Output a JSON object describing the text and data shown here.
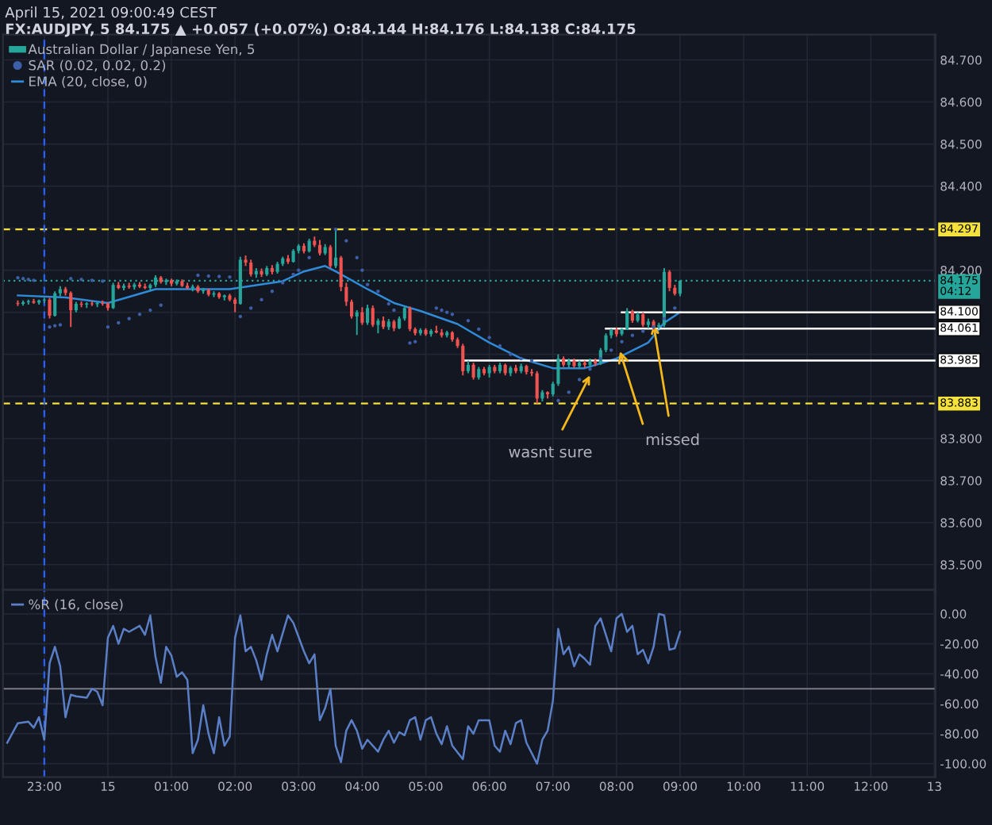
{
  "chart_data": [
    {
      "type": "candlestick",
      "title": "April 15, 2021 09:00:49 CEST",
      "subtitle": "FX:AUDJPY, 5 84.175 ▲ +0.057 (+0.07%) O:84.144 H:84.176 L:84.138 C:84.175",
      "xlim": [
        "2021-04-14T22:21",
        "2021-04-15T13:01"
      ],
      "xticks": [
        {
          "value": "2021-04-14T23:00",
          "label": null
        },
        {
          "value": "2021-04-15T00:00",
          "label": null
        },
        {
          "value": "2021-04-15T01:00",
          "label": null
        },
        {
          "value": "2021-04-15T02:00",
          "label": null
        },
        {
          "value": "2021-04-15T03:00",
          "label": null
        },
        {
          "value": "2021-04-15T04:00",
          "label": null
        },
        {
          "value": "2021-04-15T05:00",
          "label": null
        },
        {
          "value": "2021-04-15T06:00",
          "label": null
        },
        {
          "value": "2021-04-15T07:00",
          "label": null
        },
        {
          "value": "2021-04-15T08:00",
          "label": null
        },
        {
          "value": "2021-04-15T09:00",
          "label": null
        },
        {
          "value": "2021-04-15T10:00",
          "label": null
        },
        {
          "value": "2021-04-15T11:00",
          "label": null
        },
        {
          "value": "2021-04-15T12:00",
          "label": null
        },
        {
          "value": "2021-04-15T13:00",
          "label": null
        }
      ],
      "ylim": [
        83.44,
        84.76
      ],
      "yticks": [
        {
          "value": 83.5,
          "label": "83.500"
        },
        {
          "value": 83.6,
          "label": "83.600"
        },
        {
          "value": 83.7,
          "label": "83.700"
        },
        {
          "value": 83.8,
          "label": "83.800"
        },
        {
          "value": 83.9,
          "label": null
        },
        {
          "value": 84.0,
          "label": null
        },
        {
          "value": 84.1,
          "label": null
        },
        {
          "value": 84.2,
          "label": "84.200"
        },
        {
          "value": 84.3,
          "label": null
        },
        {
          "value": 84.4,
          "label": "84.400"
        },
        {
          "value": 84.5,
          "label": "84.500"
        },
        {
          "value": 84.6,
          "label": "84.600"
        },
        {
          "value": 84.7,
          "label": "84.700"
        }
      ],
      "tick_labels": "y",
      "grid": true,
      "legend": "top left",
      "series": [
        {
          "name": "Australian Dollar / Japanese Yen, 5",
          "type": "candlestick",
          "colors": [
            "#ef5350",
            "#26a69a",
            "#26a69a",
            "#ef5350",
            "#26a69a",
            "#26a69a",
            "#ef5350",
            "#26a69a",
            "#26a69a",
            "#ef5350",
            "#ef5350",
            "#26a69a",
            "#ef5350",
            "#26a69a",
            "#ef5350",
            "#26a69a",
            "#ef5350",
            "#ef5350",
            "#26a69a",
            "#ef5350",
            "#26a69a",
            "#ef5350",
            "#26a69a",
            "#ef5350",
            "#ef5350",
            "#26a69a",
            "#26a69a",
            "#ef5350",
            "#26a69a",
            "#ef5350",
            "#26a69a",
            "#ef5350",
            "#ef5350",
            "#26a69a",
            "#ef5350",
            "#26a69a",
            "#ef5350",
            "#26a69a",
            "#ef5350",
            "#26a69a",
            "#ef5350",
            "#ef5350",
            "#26a69a",
            "#ef5350",
            "#ef5350",
            "#26a69a",
            "#ef5350",
            "#26a69a",
            "#ef5350",
            "#26a69a",
            "#26a69a",
            "#ef5350",
            "#26a69a",
            "#26a69a",
            "#ef5350",
            "#26a69a",
            "#ef5350",
            "#ef5350",
            "#26a69a",
            "#ef5350",
            "#26a69a",
            "#ef5350",
            "#ef5350",
            "#ef5350",
            "#26a69a",
            "#ef5350",
            "#26a69a",
            "#ef5350",
            "#26a69a",
            "#ef5350",
            "#26a69a",
            "#ef5350",
            "#26a69a",
            "#26a69a",
            "#ef5350",
            "#ef5350",
            "#26a69a",
            "#ef5350",
            "#26a69a",
            "#ef5350",
            "#ef5350",
            "#26a69a",
            "#ef5350",
            "#ef5350",
            "#ef5350",
            "#26a69a",
            "#ef5350",
            "#26a69a",
            "#ef5350",
            "#26a69a",
            "#ef5350",
            "#26a69a",
            "#ef5350",
            "#26a69a",
            "#ef5350",
            "#26a69a",
            "#ef5350",
            "#ef5350",
            "#ef5350",
            "#26a69a",
            "#ef5350",
            "#26a69a",
            "#26a69a",
            "#ef5350",
            "#26a69a",
            "#ef5350",
            "#26a69a",
            "#ef5350",
            "#26a69a",
            "#ef5350",
            "#26a69a",
            "#26a69a",
            "#26a69a",
            "#ef5350",
            "#26a69a",
            "#26a69a",
            "#ef5350",
            "#26a69a",
            "#ef5350",
            "#26a69a",
            "#ef5350",
            "#26a69a",
            "#26a69a",
            "#ef5350",
            "#ef5350",
            "#26a69a"
          ],
          "x": [
            "2021-04-14T22:35",
            "2021-04-14T22:40",
            "2021-04-14T22:45",
            "2021-04-14T22:50",
            "2021-04-14T22:55",
            "2021-04-14T23:00",
            "2021-04-14T23:05",
            "2021-04-14T23:10",
            "2021-04-14T23:15",
            "2021-04-14T23:20",
            "2021-04-14T23:25",
            "2021-04-14T23:30",
            "2021-04-14T23:35",
            "2021-04-14T23:40",
            "2021-04-14T23:45",
            "2021-04-14T23:50",
            "2021-04-14T23:55",
            "2021-04-15T00:00",
            "2021-04-15T00:05",
            "2021-04-15T00:10",
            "2021-04-15T00:15",
            "2021-04-15T00:20",
            "2021-04-15T00:25",
            "2021-04-15T00:30",
            "2021-04-15T00:35",
            "2021-04-15T00:40",
            "2021-04-15T00:45",
            "2021-04-15T00:50",
            "2021-04-15T00:55",
            "2021-04-15T01:00",
            "2021-04-15T01:05",
            "2021-04-15T01:10",
            "2021-04-15T01:15",
            "2021-04-15T01:20",
            "2021-04-15T01:25",
            "2021-04-15T01:30",
            "2021-04-15T01:35",
            "2021-04-15T01:40",
            "2021-04-15T01:45",
            "2021-04-15T01:50",
            "2021-04-15T01:55",
            "2021-04-15T02:00",
            "2021-04-15T02:05",
            "2021-04-15T02:10",
            "2021-04-15T02:15",
            "2021-04-15T02:20",
            "2021-04-15T02:25",
            "2021-04-15T02:30",
            "2021-04-15T02:35",
            "2021-04-15T02:40",
            "2021-04-15T02:45",
            "2021-04-15T02:50",
            "2021-04-15T02:55",
            "2021-04-15T03:00",
            "2021-04-15T03:05",
            "2021-04-15T03:10",
            "2021-04-15T03:15",
            "2021-04-15T03:20",
            "2021-04-15T03:25",
            "2021-04-15T03:30",
            "2021-04-15T03:35",
            "2021-04-15T03:40",
            "2021-04-15T03:45",
            "2021-04-15T03:50",
            "2021-04-15T03:55",
            "2021-04-15T04:00",
            "2021-04-15T04:05",
            "2021-04-15T04:10",
            "2021-04-15T04:15",
            "2021-04-15T04:20",
            "2021-04-15T04:25",
            "2021-04-15T04:30",
            "2021-04-15T04:35",
            "2021-04-15T04:40",
            "2021-04-15T04:45",
            "2021-04-15T04:50",
            "2021-04-15T04:55",
            "2021-04-15T05:00",
            "2021-04-15T05:05",
            "2021-04-15T05:10",
            "2021-04-15T05:15",
            "2021-04-15T05:20",
            "2021-04-15T05:25",
            "2021-04-15T05:30",
            "2021-04-15T05:35",
            "2021-04-15T05:40",
            "2021-04-15T05:45",
            "2021-04-15T05:50",
            "2021-04-15T05:55",
            "2021-04-15T06:00",
            "2021-04-15T06:05",
            "2021-04-15T06:10",
            "2021-04-15T06:15",
            "2021-04-15T06:20",
            "2021-04-15T06:25",
            "2021-04-15T06:30",
            "2021-04-15T06:35",
            "2021-04-15T06:40",
            "2021-04-15T06:45",
            "2021-04-15T06:50",
            "2021-04-15T06:55",
            "2021-04-15T07:00",
            "2021-04-15T07:05",
            "2021-04-15T07:10",
            "2021-04-15T07:15",
            "2021-04-15T07:20",
            "2021-04-15T07:25",
            "2021-04-15T07:30",
            "2021-04-15T07:35",
            "2021-04-15T07:40",
            "2021-04-15T07:45",
            "2021-04-15T07:50",
            "2021-04-15T07:55",
            "2021-04-15T08:00",
            "2021-04-15T08:05",
            "2021-04-15T08:10",
            "2021-04-15T08:15",
            "2021-04-15T08:20",
            "2021-04-15T08:25",
            "2021-04-15T08:30",
            "2021-04-15T08:35",
            "2021-04-15T08:40",
            "2021-04-15T08:45",
            "2021-04-15T08:50",
            "2021-04-15T08:55",
            "2021-04-15T09:00"
          ],
          "ohlc": [
            [
              84.122,
              84.128,
              84.115,
              84.12
            ],
            [
              84.12,
              84.128,
              84.116,
              84.124
            ],
            [
              84.124,
              84.13,
              84.118,
              84.126
            ],
            [
              84.126,
              84.132,
              84.12,
              84.123
            ],
            [
              84.123,
              84.13,
              84.118,
              84.128
            ],
            [
              84.128,
              84.134,
              84.122,
              84.13
            ],
            [
              84.13,
              84.134,
              84.085,
              84.092
            ],
            [
              84.092,
              84.15,
              84.09,
              84.145
            ],
            [
              84.145,
              84.162,
              84.138,
              84.155
            ],
            [
              84.155,
              84.16,
              84.14,
              84.146
            ],
            [
              84.146,
              84.15,
              84.065,
              84.105
            ],
            [
              84.105,
              84.125,
              84.1,
              84.12
            ],
            [
              84.12,
              84.126,
              84.112,
              84.118
            ],
            [
              84.118,
              84.124,
              84.11,
              84.121
            ],
            [
              84.121,
              84.127,
              84.115,
              84.119
            ],
            [
              84.119,
              84.125,
              84.112,
              84.122
            ],
            [
              84.122,
              84.128,
              84.116,
              84.12
            ],
            [
              84.12,
              84.124,
              84.104,
              84.11
            ],
            [
              84.11,
              84.17,
              84.108,
              84.165
            ],
            [
              84.165,
              84.172,
              84.155,
              84.158
            ],
            [
              84.158,
              84.168,
              84.152,
              84.163
            ],
            [
              84.163,
              84.17,
              84.156,
              84.16
            ],
            [
              84.16,
              84.17,
              84.154,
              84.166
            ],
            [
              84.166,
              84.172,
              84.158,
              84.161
            ],
            [
              84.161,
              84.168,
              84.155,
              84.158
            ],
            [
              84.158,
              84.168,
              84.152,
              84.165
            ],
            [
              84.165,
              84.188,
              84.16,
              84.183
            ],
            [
              84.183,
              84.186,
              84.168,
              84.172
            ],
            [
              84.172,
              84.18,
              84.165,
              84.176
            ],
            [
              84.176,
              84.18,
              84.162,
              84.168
            ],
            [
              84.168,
              84.178,
              84.164,
              84.174
            ],
            [
              84.174,
              84.178,
              84.16,
              84.163
            ],
            [
              84.163,
              84.17,
              84.155,
              84.158
            ],
            [
              84.158,
              84.166,
              84.15,
              84.161
            ],
            [
              84.161,
              84.165,
              84.146,
              84.15
            ],
            [
              84.15,
              84.158,
              84.144,
              84.153
            ],
            [
              84.153,
              84.156,
              84.138,
              84.142
            ],
            [
              84.142,
              84.15,
              84.136,
              84.145
            ],
            [
              84.145,
              84.148,
              84.132,
              84.136
            ],
            [
              84.136,
              84.142,
              84.128,
              84.14
            ],
            [
              84.14,
              84.144,
              84.126,
              84.13
            ],
            [
              84.13,
              84.135,
              84.1,
              84.12
            ],
            [
              84.12,
              84.232,
              84.118,
              84.225
            ],
            [
              84.225,
              84.235,
              84.21,
              84.218
            ],
            [
              84.218,
              84.225,
              84.185,
              84.19
            ],
            [
              84.19,
              84.205,
              84.182,
              84.198
            ],
            [
              84.198,
              84.204,
              84.184,
              84.19
            ],
            [
              84.19,
              84.21,
              84.186,
              84.205
            ],
            [
              84.205,
              84.212,
              84.19,
              84.196
            ],
            [
              84.196,
              84.22,
              84.192,
              84.215
            ],
            [
              84.215,
              84.232,
              84.21,
              84.228
            ],
            [
              84.228,
              84.236,
              84.215,
              84.22
            ],
            [
              84.22,
              84.25,
              84.218,
              84.246
            ],
            [
              84.246,
              84.262,
              84.24,
              84.258
            ],
            [
              84.258,
              84.264,
              84.24,
              84.245
            ],
            [
              84.245,
              84.275,
              84.242,
              84.27
            ],
            [
              84.27,
              84.28,
              84.255,
              84.26
            ],
            [
              84.26,
              84.272,
              84.235,
              84.24
            ],
            [
              84.24,
              84.262,
              84.236,
              84.255
            ],
            [
              84.255,
              84.26,
              84.205,
              84.21
            ],
            [
              84.21,
              84.297,
              84.205,
              84.23
            ],
            [
              84.23,
              84.234,
              84.15,
              84.16
            ],
            [
              84.16,
              84.17,
              84.115,
              84.125
            ],
            [
              84.125,
              84.13,
              84.085,
              84.09
            ],
            [
              84.09,
              84.105,
              84.046,
              84.1
            ],
            [
              84.1,
              84.112,
              84.07,
              84.075
            ],
            [
              84.075,
              84.118,
              84.07,
              84.11
            ],
            [
              84.11,
              84.116,
              84.065,
              84.07
            ],
            [
              84.07,
              84.085,
              84.05,
              84.08
            ],
            [
              84.08,
              84.09,
              84.06,
              84.065
            ],
            [
              84.065,
              84.084,
              84.058,
              84.078
            ],
            [
              84.078,
              84.082,
              84.055,
              84.062
            ],
            [
              84.062,
              84.09,
              84.06,
              84.085
            ],
            [
              84.085,
              84.115,
              84.08,
              84.11
            ],
            [
              84.11,
              84.114,
              84.055,
              84.06
            ],
            [
              84.06,
              84.064,
              84.045,
              84.05
            ],
            [
              84.05,
              84.062,
              84.045,
              84.058
            ],
            [
              84.058,
              84.062,
              84.044,
              84.048
            ],
            [
              84.048,
              84.06,
              84.042,
              84.056
            ],
            [
              84.056,
              84.068,
              84.05,
              84.052
            ],
            [
              84.052,
              84.06,
              84.04,
              84.045
            ],
            [
              84.045,
              84.056,
              84.04,
              84.052
            ],
            [
              84.052,
              84.055,
              84.03,
              84.035
            ],
            [
              84.035,
              84.04,
              84.015,
              84.02
            ],
            [
              84.02,
              84.025,
              83.95,
              83.96
            ],
            [
              83.96,
              83.985,
              83.955,
              83.975
            ],
            [
              83.975,
              83.98,
              83.94,
              83.945
            ],
            [
              83.945,
              83.97,
              83.94,
              83.965
            ],
            [
              83.965,
              83.97,
              83.95,
              83.955
            ],
            [
              83.955,
              83.975,
              83.945,
              83.97
            ],
            [
              83.97,
              83.975,
              83.955,
              83.96
            ],
            [
              83.96,
              83.98,
              83.955,
              83.975
            ],
            [
              83.975,
              83.978,
              83.95,
              83.955
            ],
            [
              83.955,
              83.972,
              83.948,
              83.968
            ],
            [
              83.968,
              83.975,
              83.955,
              83.96
            ],
            [
              83.96,
              83.978,
              83.955,
              83.972
            ],
            [
              83.972,
              83.975,
              83.952,
              83.958
            ],
            [
              83.958,
              83.965,
              83.948,
              83.955
            ],
            [
              83.955,
              83.96,
              83.883,
              83.895
            ],
            [
              83.895,
              83.915,
              83.888,
              83.91
            ],
            [
              83.91,
              83.912,
              83.895,
              83.905
            ],
            [
              83.905,
              83.935,
              83.9,
              83.93
            ],
            [
              83.93,
              84.0,
              83.925,
              83.99
            ],
            [
              83.99,
              83.995,
              83.97,
              83.975
            ],
            [
              83.975,
              83.99,
              83.968,
              83.985
            ],
            [
              83.985,
              83.99,
              83.968,
              83.972
            ],
            [
              83.972,
              83.985,
              83.965,
              83.98
            ],
            [
              83.98,
              83.985,
              83.968,
              83.975
            ],
            [
              83.975,
              83.99,
              83.97,
              83.984
            ],
            [
              83.984,
              83.99,
              83.972,
              83.978
            ],
            [
              83.978,
              84.015,
              83.975,
              84.01
            ],
            [
              84.01,
              84.05,
              84.005,
              84.045
            ],
            [
              84.045,
              84.061,
              84.038,
              84.058
            ],
            [
              84.058,
              84.064,
              84.042,
              84.048
            ],
            [
              84.048,
              84.062,
              84.044,
              84.06
            ],
            [
              84.06,
              84.11,
              84.058,
              84.102
            ],
            [
              84.102,
              84.106,
              84.075,
              84.08
            ],
            [
              84.08,
              84.1,
              84.076,
              84.095
            ],
            [
              84.095,
              84.1,
              84.065,
              84.07
            ],
            [
              84.07,
              84.085,
              84.062,
              84.078
            ],
            [
              84.078,
              84.082,
              84.058,
              84.065
            ],
            [
              84.065,
              84.075,
              84.06,
              84.07
            ],
            [
              84.07,
              84.205,
              84.065,
              84.196
            ],
            [
              84.196,
              84.2,
              84.15,
              84.158
            ],
            [
              84.158,
              84.165,
              84.14,
              84.144
            ],
            [
              84.144,
              84.176,
              84.138,
              84.175
            ]
          ]
        },
        {
          "name": "SAR (0.02, 0.02, 0.2)",
          "type": "scatter",
          "marker": "circle",
          "color": "#3d5fa8",
          "x": [
            "2021-04-14T22:35",
            "2021-04-14T22:40",
            "2021-04-14T22:45",
            "2021-04-14T22:50",
            "2021-04-14T23:05",
            "2021-04-14T23:10",
            "2021-04-14T23:15",
            "2021-04-14T23:25",
            "2021-04-14T23:35",
            "2021-04-14T23:45",
            "2021-04-14T23:55",
            "2021-04-15T00:00",
            "2021-04-15T00:10",
            "2021-04-15T00:20",
            "2021-04-15T00:30",
            "2021-04-15T00:40",
            "2021-04-15T00:50",
            "2021-04-15T01:25",
            "2021-04-15T01:35",
            "2021-04-15T01:45",
            "2021-04-15T01:55",
            "2021-04-15T02:05",
            "2021-04-15T02:15",
            "2021-04-15T02:25",
            "2021-04-15T02:35",
            "2021-04-15T02:45",
            "2021-04-15T02:55",
            "2021-04-15T03:00",
            "2021-04-15T03:10",
            "2021-04-15T03:35",
            "2021-04-15T03:45",
            "2021-04-15T03:55",
            "2021-04-15T04:00",
            "2021-04-15T04:05",
            "2021-04-15T04:15",
            "2021-04-15T04:25",
            "2021-04-15T04:30",
            "2021-04-15T04:45",
            "2021-04-15T04:50",
            "2021-04-15T05:10",
            "2021-04-15T05:15",
            "2021-04-15T05:20",
            "2021-04-15T05:25",
            "2021-04-15T05:40",
            "2021-04-15T05:50",
            "2021-04-15T06:00",
            "2021-04-15T06:10",
            "2021-04-15T06:20",
            "2021-04-15T06:30",
            "2021-04-15T06:40",
            "2021-04-15T07:05",
            "2021-04-15T07:15",
            "2021-04-15T07:25",
            "2021-04-15T07:35",
            "2021-04-15T07:45",
            "2021-04-15T07:55",
            "2021-04-15T08:05",
            "2021-04-15T08:15",
            "2021-04-15T08:25",
            "2021-04-15T08:35",
            "2021-04-15T08:45",
            "2021-04-15T08:55"
          ],
          "values": [
            84.182,
            84.18,
            84.178,
            84.176,
            84.065,
            84.068,
            84.07,
            84.18,
            84.178,
            84.176,
            84.174,
            84.065,
            84.075,
            84.085,
            84.095,
            84.105,
            84.117,
            84.188,
            84.186,
            84.185,
            84.184,
            84.09,
            84.11,
            84.13,
            84.15,
            84.17,
            84.19,
            84.2,
            84.23,
            84.297,
            84.27,
            84.23,
            84.2,
            84.166,
            84.15,
            84.12,
            84.105,
            84.027,
            84.03,
            84.11,
            84.105,
            84.1,
            84.095,
            84.08,
            84.06,
            84.04,
            84.02,
            84.0,
            83.99,
            83.985,
            83.89,
            83.91,
            83.94,
            83.965,
            83.99,
            84.01,
            84.03,
            84.045,
            84.055,
            84.065,
            84.085,
            84.11
          ]
        },
        {
          "name": "EMA (20, close, 0)",
          "type": "line",
          "line_style": "solid",
          "color": "#2f8bd8",
          "x": [
            "2021-04-14T22:35",
            "2021-04-14T23:20",
            "2021-04-15T00:00",
            "2021-04-15T00:45",
            "2021-04-15T01:55",
            "2021-04-15T02:45",
            "2021-04-15T03:05",
            "2021-04-15T03:25",
            "2021-04-15T03:35",
            "2021-04-15T04:05",
            "2021-04-15T04:30",
            "2021-04-15T04:55",
            "2021-04-15T05:30",
            "2021-04-15T06:00",
            "2021-04-15T06:30",
            "2021-04-15T07:00",
            "2021-04-15T07:30",
            "2021-04-15T08:00",
            "2021-04-15T08:30",
            "2021-04-15T08:45",
            "2021-04-15T09:00"
          ],
          "values": [
            84.14,
            84.135,
            84.122,
            84.155,
            84.155,
            84.174,
            84.197,
            84.21,
            84.197,
            84.155,
            84.122,
            84.103,
            84.072,
            84.028,
            83.99,
            83.967,
            83.967,
            83.99,
            84.028,
            84.075,
            84.1
          ]
        },
        {
          "type": "line",
          "line_style": "solid",
          "color": "#ffffff",
          "x": [
            "2021-04-15T08:05",
            "2021-04-15T13:01"
          ],
          "values": [
            84.1,
            84.1
          ],
          "value_labels": [
            null,
            "84.100"
          ]
        },
        {
          "type": "line",
          "line_style": "solid",
          "color": "#ffffff",
          "x": [
            "2021-04-15T07:50",
            "2021-04-15T13:01"
          ],
          "values": [
            84.061,
            84.061
          ],
          "value_labels": [
            null,
            "84.061"
          ]
        },
        {
          "type": "line",
          "line_style": "solid",
          "color": "#ffffff",
          "x": [
            "2021-04-15T05:35",
            "2021-04-15T13:01"
          ],
          "values": [
            83.985,
            83.985
          ],
          "value_labels": [
            null,
            "83.985"
          ]
        }
      ],
      "ref_lines": [
        {
          "axis": "y",
          "value": 84.297,
          "label": "84.297",
          "color": "#f5e13b",
          "line_style": "dashed"
        },
        {
          "axis": "y",
          "value": 83.883,
          "label": "83.883",
          "color": "#f5e13b",
          "line_style": "dashed"
        },
        {
          "axis": "y",
          "value": 84.175,
          "label": "84.175\n04:12",
          "color": "#26a69a",
          "line_style": "dotted"
        },
        {
          "axis": "x",
          "value": "2021-04-14T23:00",
          "color": "#2962ff",
          "line_style": "dashed"
        }
      ],
      "annotations": [
        {
          "text": "wasnt sure",
          "x": "2021-04-15T07:35",
          "y": 83.95
        },
        {
          "text": "missed",
          "x": "2021-04-15T08:35",
          "y": 84.07
        }
      ]
    },
    {
      "type": "line",
      "xlim": [
        "2021-04-14T22:21",
        "2021-04-15T13:01"
      ],
      "xticks": [
        {
          "value": "2021-04-14T23:00",
          "label": "23:00"
        },
        {
          "value": "2021-04-15T00:00",
          "label": "15"
        },
        {
          "value": "2021-04-15T01:00",
          "label": "01:00"
        },
        {
          "value": "2021-04-15T02:00",
          "label": "02:00"
        },
        {
          "value": "2021-04-15T03:00",
          "label": "03:00"
        },
        {
          "value": "2021-04-15T04:00",
          "label": "04:00"
        },
        {
          "value": "2021-04-15T05:00",
          "label": "05:00"
        },
        {
          "value": "2021-04-15T06:00",
          "label": "06:00"
        },
        {
          "value": "2021-04-15T07:00",
          "label": "07:00"
        },
        {
          "value": "2021-04-15T08:00",
          "label": "08:00"
        },
        {
          "value": "2021-04-15T09:00",
          "label": "09:00"
        },
        {
          "value": "2021-04-15T10:00",
          "label": "10:00"
        },
        {
          "value": "2021-04-15T11:00",
          "label": "11:00"
        },
        {
          "value": "2021-04-15T12:00",
          "label": "12:00"
        },
        {
          "value": "2021-04-15T13:00",
          "label": "13"
        }
      ],
      "ylim": [
        -109,
        16
      ],
      "yticks": [
        {
          "value": -100,
          "label": "-100.00"
        },
        {
          "value": -80,
          "label": "-80.00"
        },
        {
          "value": -60,
          "label": "-60.00"
        },
        {
          "value": -40,
          "label": "-40.00"
        },
        {
          "value": -20,
          "label": "-20.00"
        },
        {
          "value": 0,
          "label": "0.00"
        }
      ],
      "grid": true,
      "legend": "top left",
      "ref_lines": [
        {
          "axis": "y",
          "value": -50,
          "color": "#787b86",
          "line_style": "solid"
        },
        {
          "axis": "x",
          "value": "2021-04-14T23:00",
          "color": "#2962ff",
          "line_style": "dashed"
        }
      ],
      "series": [
        {
          "name": "%R (16, close)",
          "color": "#5b7fc7",
          "line_style": "solid",
          "x": [
            "2021-04-14T22:25",
            "2021-04-14T22:35",
            "2021-04-14T22:45",
            "2021-04-14T22:50",
            "2021-04-14T22:55",
            "2021-04-14T23:00",
            "2021-04-14T23:05",
            "2021-04-14T23:10",
            "2021-04-14T23:15",
            "2021-04-14T23:20",
            "2021-04-14T23:25",
            "2021-04-14T23:30",
            "2021-04-14T23:40",
            "2021-04-14T23:45",
            "2021-04-14T23:50",
            "2021-04-14T23:55",
            "2021-04-15T00:00",
            "2021-04-15T00:05",
            "2021-04-15T00:10",
            "2021-04-15T00:15",
            "2021-04-15T00:20",
            "2021-04-15T00:30",
            "2021-04-15T00:35",
            "2021-04-15T00:40",
            "2021-04-15T00:45",
            "2021-04-15T00:50",
            "2021-04-15T00:55",
            "2021-04-15T01:00",
            "2021-04-15T01:05",
            "2021-04-15T01:10",
            "2021-04-15T01:15",
            "2021-04-15T01:20",
            "2021-04-15T01:25",
            "2021-04-15T01:30",
            "2021-04-15T01:35",
            "2021-04-15T01:40",
            "2021-04-15T01:45",
            "2021-04-15T01:50",
            "2021-04-15T01:55",
            "2021-04-15T02:00",
            "2021-04-15T02:05",
            "2021-04-15T02:10",
            "2021-04-15T02:15",
            "2021-04-15T02:20",
            "2021-04-15T02:25",
            "2021-04-15T02:30",
            "2021-04-15T02:35",
            "2021-04-15T02:40",
            "2021-04-15T02:50",
            "2021-04-15T02:55",
            "2021-04-15T03:05",
            "2021-04-15T03:10",
            "2021-04-15T03:15",
            "2021-04-15T03:20",
            "2021-04-15T03:25",
            "2021-04-15T03:30",
            "2021-04-15T03:35",
            "2021-04-15T03:40",
            "2021-04-15T03:45",
            "2021-04-15T03:50",
            "2021-04-15T03:55",
            "2021-04-15T04:00",
            "2021-04-15T04:05",
            "2021-04-15T04:15",
            "2021-04-15T04:20",
            "2021-04-15T04:25",
            "2021-04-15T04:30",
            "2021-04-15T04:35",
            "2021-04-15T04:40",
            "2021-04-15T04:45",
            "2021-04-15T04:50",
            "2021-04-15T04:55",
            "2021-04-15T05:00",
            "2021-04-15T05:05",
            "2021-04-15T05:10",
            "2021-04-15T05:15",
            "2021-04-15T05:20",
            "2021-04-15T05:25",
            "2021-04-15T05:35",
            "2021-04-15T05:40",
            "2021-04-15T05:45",
            "2021-04-15T05:50",
            "2021-04-15T06:00",
            "2021-04-15T06:05",
            "2021-04-15T06:10",
            "2021-04-15T06:15",
            "2021-04-15T06:20",
            "2021-04-15T06:25",
            "2021-04-15T06:30",
            "2021-04-15T06:35",
            "2021-04-15T06:45",
            "2021-04-15T06:50",
            "2021-04-15T06:55",
            "2021-04-15T07:00",
            "2021-04-15T07:05",
            "2021-04-15T07:10",
            "2021-04-15T07:15",
            "2021-04-15T07:20",
            "2021-04-15T07:25",
            "2021-04-15T07:30",
            "2021-04-15T07:35",
            "2021-04-15T07:40",
            "2021-04-15T07:45",
            "2021-04-15T07:50",
            "2021-04-15T07:55",
            "2021-04-15T08:00",
            "2021-04-15T08:05",
            "2021-04-15T08:10",
            "2021-04-15T08:15",
            "2021-04-15T08:20",
            "2021-04-15T08:25",
            "2021-04-15T08:30",
            "2021-04-15T08:35",
            "2021-04-15T08:40",
            "2021-04-15T08:45",
            "2021-04-15T08:50",
            "2021-04-15T08:55",
            "2021-04-15T09:00"
          ],
          "values": [
            -86,
            -73,
            -72,
            -76,
            -69,
            -84,
            -33,
            -22,
            -35,
            -69,
            -54,
            -55,
            -56,
            -50,
            -52,
            -61,
            -16,
            -8,
            -20,
            -10,
            -12,
            -8,
            -14,
            -1,
            -29,
            -46,
            -22,
            -28,
            -42,
            -39,
            -44,
            -93,
            -84,
            -61,
            -80,
            -93,
            -69,
            -88,
            -82,
            -16,
            -1,
            -25,
            -22,
            -31,
            -44,
            -27,
            -14,
            -25,
            -1,
            -6,
            -25,
            -33,
            -27,
            -71,
            -63,
            -50,
            -88,
            -99,
            -78,
            -71,
            -78,
            -90,
            -84,
            -92,
            -84,
            -78,
            -86,
            -79,
            -81,
            -71,
            -69,
            -84,
            -71,
            -69,
            -80,
            -87,
            -75,
            -88,
            -97,
            -75,
            -80,
            -71,
            -71,
            -88,
            -92,
            -78,
            -87,
            -73,
            -71,
            -86,
            -100,
            -84,
            -78,
            -58,
            -10,
            -27,
            -22,
            -35,
            -27,
            -30,
            -34,
            -8,
            -3,
            -14,
            -25,
            -3,
            0,
            -12,
            -8,
            -27,
            -24,
            -33,
            -22,
            0,
            -1,
            -24,
            -23,
            -12
          ]
        }
      ]
    }
  ]
}
